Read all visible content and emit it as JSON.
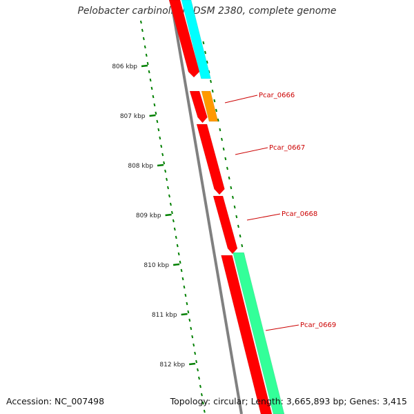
{
  "title": "Pelobacter carbinolicus DSM 2380, complete genome",
  "accession": "Accession: NC_007498",
  "summary": "Topology: circular; Length: 3,665,893 bp; Genes: 3,415",
  "tick_labels": [
    "806 kbp",
    "807 kbp",
    "808 kbp",
    "809 kbp",
    "810 kbp",
    "811 kbp",
    "812 kbp"
  ],
  "genes": [
    {
      "label": "Pcar_0666"
    },
    {
      "label": "Pcar_0667"
    },
    {
      "label": "Pcar_0668"
    },
    {
      "label": "Pcar_0669"
    }
  ],
  "colors": {
    "backbone": "#808080",
    "cds_forward": "#ff0000",
    "cds_reverse_top": "#00ffff",
    "cds_reverse_mid": "#ff9900",
    "cds_reverse_bottom": "#33ff99",
    "gc_ticks": "#008000",
    "label": "#cc0000"
  }
}
